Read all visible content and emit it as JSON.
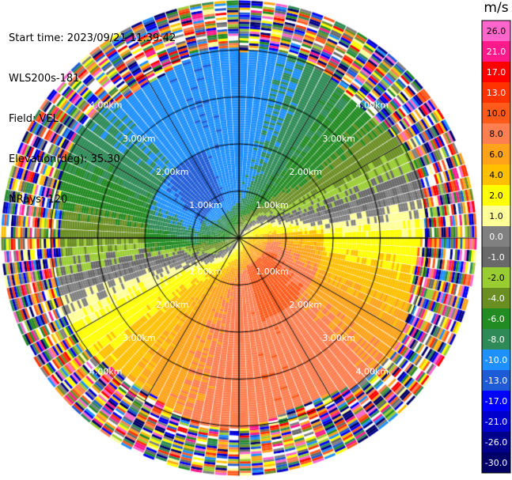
{
  "info": {
    "start_time": "Start time: 2023/09/21 11:39:42",
    "instrument": "WLS200s-181",
    "field": "Field: VEL",
    "elevation": "Elevation(deg): 35.30",
    "nrays": "NRays: 120"
  },
  "colorbar": {
    "title": "m/s",
    "levels": [
      "26.0",
      "21.0",
      "17.0",
      "13.0",
      "10.0",
      "8.0",
      "6.0",
      "4.0",
      "2.0",
      "1.0",
      "0.0",
      "-1.0",
      "-2.0",
      "-4.0",
      "-6.0",
      "-8.0",
      "-10.0",
      "-13.0",
      "-17.0",
      "-21.0",
      "-26.0",
      "-30.0"
    ],
    "colors": [
      "#ff66cc",
      "#ff1a8c",
      "#ff0000",
      "#ff3300",
      "#ff5a1a",
      "#ff7f50",
      "#ffa31a",
      "#ffc000",
      "#ffff00",
      "#ffff99",
      "#808080",
      "#696969",
      "#9acd32",
      "#6b8e23",
      "#228b22",
      "#2e8b57",
      "#1e90ff",
      "#1e5bd6",
      "#0000ff",
      "#0000cd",
      "#00008b",
      "#000066"
    ]
  },
  "chart_data": {
    "type": "heatmap",
    "subtype": "lidar PPI (plan position indicator)",
    "field": "VEL",
    "units": "m/s",
    "nrays": 120,
    "elevation_deg": 35.3,
    "range_rings_km": [
      1.0,
      2.0,
      3.0,
      4.0
    ],
    "range_ring_labels": [
      "1.00km",
      "2.00km",
      "3.00km",
      "4.00km"
    ],
    "max_range_km": 5.05,
    "value_range": [
      -30.0,
      26.0
    ],
    "pattern": {
      "description_of_field": "radial velocity with bipolar structure",
      "receding_max_ms": 10.0,
      "approaching_max_ms": -10.0,
      "zero_line_azimuth_near_deg": 40,
      "noise_beyond_km": 3.9
    }
  }
}
